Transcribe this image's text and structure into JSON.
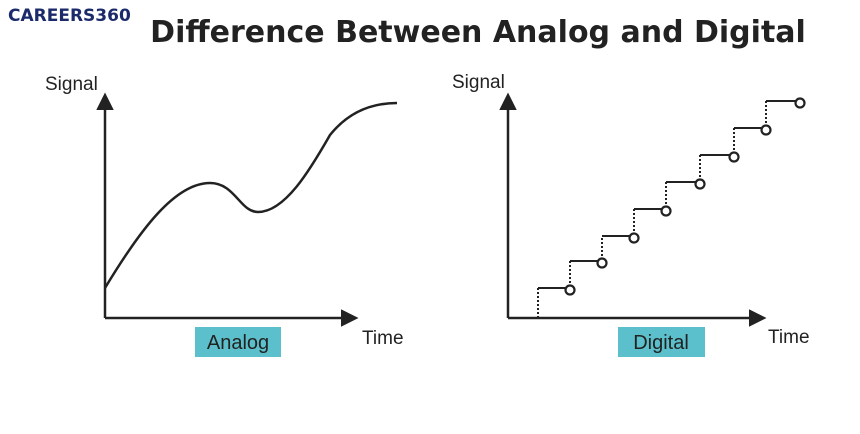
{
  "header": {
    "logo": "CAREERS360",
    "title": "Difference Between Analog and Digital"
  },
  "panels": [
    {
      "y_label": "Signal",
      "x_label": "Time",
      "caption": "Analog"
    },
    {
      "y_label": "Signal",
      "x_label": "Time",
      "caption": "Digital"
    }
  ]
}
